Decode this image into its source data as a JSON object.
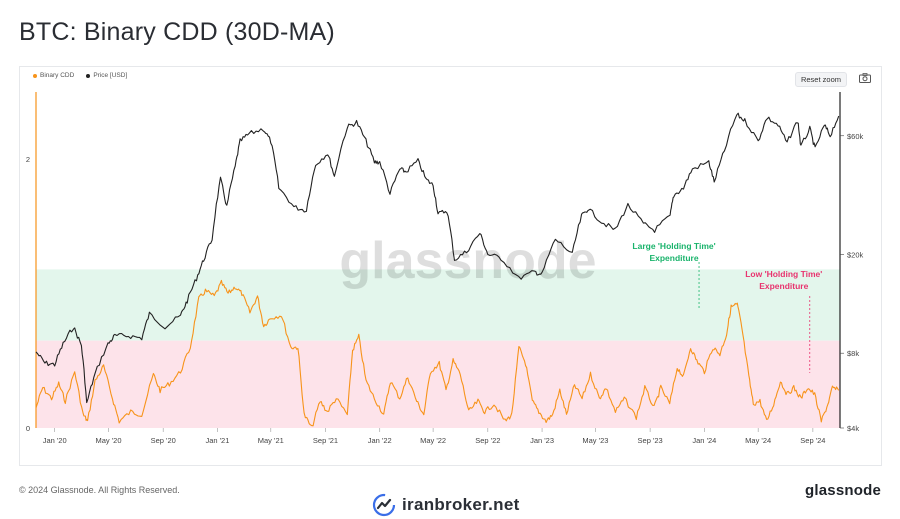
{
  "header": {
    "title": "BTC: Binary CDD (30D-MA)"
  },
  "toolbar": {
    "reset_zoom_label": "Reset zoom",
    "camera_icon": "camera-icon"
  },
  "footer": {
    "copyright": "© 2024 Glassnode. All Rights Reserved.",
    "brand": "glassnode",
    "watermark_site": "iranbroker.net"
  },
  "chart_data": {
    "type": "line",
    "title": "BTC: Binary CDD (30D-MA)",
    "watermark": "glassnode",
    "legend": {
      "placement": "top-left",
      "entries": [
        {
          "name": "Binary CDD",
          "color": "#f7931a"
        },
        {
          "name": "Price [USD]",
          "color": "#222222"
        }
      ]
    },
    "x_axis": {
      "type": "date",
      "range": [
        "2019-11-20",
        "2024-11-01"
      ],
      "tick_labels": [
        "Jan '20",
        "May '20",
        "Sep '20",
        "Jan '21",
        "May '21",
        "Sep '21",
        "Jan '22",
        "May '22",
        "Sep '22",
        "Jan '23",
        "May '23",
        "Sep '23",
        "Jan '24",
        "May '24",
        "Sep '24"
      ],
      "tick_dates": [
        "2020-01-01",
        "2020-05-01",
        "2020-09-01",
        "2021-01-01",
        "2021-05-01",
        "2021-09-01",
        "2022-01-01",
        "2022-05-01",
        "2022-09-01",
        "2023-01-01",
        "2023-05-01",
        "2023-09-01",
        "2024-01-01",
        "2024-05-01",
        "2024-09-01"
      ]
    },
    "y_left": {
      "label": "",
      "range": [
        0,
        2.5
      ],
      "tick_labels": [
        "0",
        "2"
      ],
      "tick_values": [
        0,
        2
      ]
    },
    "y_right": {
      "label": "",
      "scale": "log",
      "range": [
        4000,
        90000
      ],
      "tick_labels": [
        "$4k",
        "$8k",
        "$20k",
        "$60k"
      ],
      "tick_values": [
        4000,
        8000,
        20000,
        60000
      ]
    },
    "bands": [
      {
        "name": "green",
        "from": 0.65,
        "to": 1.18,
        "color": "#e3f6ec"
      },
      {
        "name": "pink",
        "from": 0,
        "to": 0.65,
        "color": "#fde3ea"
      }
    ],
    "annotations": [
      {
        "text_lines": [
          "Large 'Holding Time'",
          "Expenditure"
        ],
        "color": "#19b36b",
        "date": "2023-12-20",
        "y_cdd": 0.88
      },
      {
        "text_lines": [
          "Low 'Holding Time'",
          "Expenditure"
        ],
        "color": "#e8336e",
        "date": "2024-08-25",
        "y_cdd": 0.41
      }
    ],
    "series": [
      {
        "name": "Price [USD]",
        "axis": "right",
        "color": "#222222",
        "points": [
          [
            "2019-11-20",
            8100
          ],
          [
            "2019-12-10",
            7300
          ],
          [
            "2020-01-01",
            7200
          ],
          [
            "2020-01-20",
            8700
          ],
          [
            "2020-02-12",
            10200
          ],
          [
            "2020-03-01",
            8600
          ],
          [
            "2020-03-13",
            5000
          ],
          [
            "2020-04-01",
            6600
          ],
          [
            "2020-04-30",
            8700
          ],
          [
            "2020-05-15",
            9400
          ],
          [
            "2020-06-15",
            9400
          ],
          [
            "2020-07-15",
            9200
          ],
          [
            "2020-08-01",
            11500
          ],
          [
            "2020-09-05",
            10200
          ],
          [
            "2020-10-10",
            11300
          ],
          [
            "2020-10-25",
            13000
          ],
          [
            "2020-11-15",
            16000
          ],
          [
            "2020-12-01",
            19000
          ],
          [
            "2020-12-20",
            23000
          ],
          [
            "2021-01-08",
            40000
          ],
          [
            "2021-01-22",
            31000
          ],
          [
            "2021-02-10",
            45000
          ],
          [
            "2021-02-21",
            57000
          ],
          [
            "2021-03-13",
            61000
          ],
          [
            "2021-04-14",
            64000
          ],
          [
            "2021-05-01",
            57000
          ],
          [
            "2021-05-19",
            37000
          ],
          [
            "2021-06-22",
            31000
          ],
          [
            "2021-07-20",
            30000
          ],
          [
            "2021-08-10",
            46000
          ],
          [
            "2021-09-06",
            51000
          ],
          [
            "2021-09-21",
            41000
          ],
          [
            "2021-10-20",
            65000
          ],
          [
            "2021-11-10",
            68000
          ],
          [
            "2021-12-01",
            57000
          ],
          [
            "2021-12-20",
            47000
          ],
          [
            "2022-01-01",
            47000
          ],
          [
            "2022-01-24",
            35000
          ],
          [
            "2022-02-15",
            44000
          ],
          [
            "2022-03-01",
            43000
          ],
          [
            "2022-03-28",
            47500
          ],
          [
            "2022-04-15",
            40000
          ],
          [
            "2022-05-01",
            38000
          ],
          [
            "2022-05-12",
            29000
          ],
          [
            "2022-06-01",
            30000
          ],
          [
            "2022-06-18",
            19000
          ],
          [
            "2022-07-15",
            20500
          ],
          [
            "2022-08-14",
            24300
          ],
          [
            "2022-09-01",
            20000
          ],
          [
            "2022-10-01",
            19300
          ],
          [
            "2022-11-09",
            16000
          ],
          [
            "2022-12-15",
            17000
          ],
          [
            "2023-01-01",
            16600
          ],
          [
            "2023-01-31",
            23000
          ],
          [
            "2023-03-10",
            20000
          ],
          [
            "2023-03-31",
            28500
          ],
          [
            "2023-04-14",
            30500
          ],
          [
            "2023-05-15",
            27000
          ],
          [
            "2023-06-15",
            25000
          ],
          [
            "2023-07-13",
            31500
          ],
          [
            "2023-08-17",
            26500
          ],
          [
            "2023-09-11",
            25000
          ],
          [
            "2023-10-16",
            28500
          ],
          [
            "2023-10-24",
            34500
          ],
          [
            "2023-11-15",
            37000
          ],
          [
            "2023-12-05",
            44000
          ],
          [
            "2024-01-11",
            47000
          ],
          [
            "2024-01-23",
            39000
          ],
          [
            "2024-02-15",
            52000
          ],
          [
            "2024-03-14",
            73000
          ],
          [
            "2024-04-01",
            69000
          ],
          [
            "2024-05-01",
            57000
          ],
          [
            "2024-05-21",
            71000
          ],
          [
            "2024-06-15",
            66000
          ],
          [
            "2024-07-05",
            56000
          ],
          [
            "2024-07-29",
            69000
          ],
          [
            "2024-08-05",
            54000
          ],
          [
            "2024-08-25",
            64000
          ],
          [
            "2024-09-06",
            53000
          ],
          [
            "2024-09-27",
            66000
          ],
          [
            "2024-10-10",
            60000
          ],
          [
            "2024-10-29",
            72000
          ]
        ]
      },
      {
        "name": "Binary CDD",
        "axis": "left",
        "color": "#f7931a",
        "points": [
          [
            "2019-11-20",
            0.15
          ],
          [
            "2019-12-05",
            0.3
          ],
          [
            "2019-12-25",
            0.22
          ],
          [
            "2020-01-10",
            0.33
          ],
          [
            "2020-01-25",
            0.2
          ],
          [
            "2020-02-15",
            0.42
          ],
          [
            "2020-03-05",
            0.1
          ],
          [
            "2020-03-15",
            0.05
          ],
          [
            "2020-04-01",
            0.35
          ],
          [
            "2020-04-20",
            0.46
          ],
          [
            "2020-05-10",
            0.22
          ],
          [
            "2020-05-25",
            0.05
          ],
          [
            "2020-06-20",
            0.12
          ],
          [
            "2020-07-15",
            0.1
          ],
          [
            "2020-08-10",
            0.4
          ],
          [
            "2020-08-25",
            0.28
          ],
          [
            "2020-09-15",
            0.33
          ],
          [
            "2020-10-10",
            0.42
          ],
          [
            "2020-11-01",
            0.6
          ],
          [
            "2020-11-20",
            0.96
          ],
          [
            "2020-12-05",
            1.02
          ],
          [
            "2020-12-25",
            0.98
          ],
          [
            "2021-01-10",
            1.08
          ],
          [
            "2021-01-25",
            1.0
          ],
          [
            "2021-02-10",
            1.05
          ],
          [
            "2021-02-25",
            1.0
          ],
          [
            "2021-03-15",
            0.86
          ],
          [
            "2021-04-01",
            0.98
          ],
          [
            "2021-04-15",
            0.76
          ],
          [
            "2021-05-01",
            0.82
          ],
          [
            "2021-05-25",
            0.84
          ],
          [
            "2021-06-15",
            0.6
          ],
          [
            "2021-07-01",
            0.6
          ],
          [
            "2021-07-15",
            0.1
          ],
          [
            "2021-08-01",
            0.0
          ],
          [
            "2021-08-20",
            0.2
          ],
          [
            "2021-09-05",
            0.12
          ],
          [
            "2021-09-25",
            0.22
          ],
          [
            "2021-10-20",
            0.1
          ],
          [
            "2021-11-01",
            0.58
          ],
          [
            "2021-11-15",
            0.68
          ],
          [
            "2021-12-01",
            0.35
          ],
          [
            "2021-12-20",
            0.22
          ],
          [
            "2022-01-10",
            0.1
          ],
          [
            "2022-01-25",
            0.35
          ],
          [
            "2022-02-15",
            0.22
          ],
          [
            "2022-03-05",
            0.38
          ],
          [
            "2022-03-25",
            0.2
          ],
          [
            "2022-04-10",
            0.1
          ],
          [
            "2022-04-25",
            0.42
          ],
          [
            "2022-05-15",
            0.48
          ],
          [
            "2022-05-30",
            0.28
          ],
          [
            "2022-06-15",
            0.5
          ],
          [
            "2022-07-01",
            0.4
          ],
          [
            "2022-07-20",
            0.12
          ],
          [
            "2022-08-10",
            0.2
          ],
          [
            "2022-08-25",
            0.12
          ],
          [
            "2022-09-15",
            0.18
          ],
          [
            "2022-10-10",
            0.05
          ],
          [
            "2022-10-25",
            0.1
          ],
          [
            "2022-11-10",
            0.6
          ],
          [
            "2022-11-25",
            0.48
          ],
          [
            "2022-12-10",
            0.2
          ],
          [
            "2022-12-25",
            0.12
          ],
          [
            "2023-01-10",
            0.05
          ],
          [
            "2023-01-25",
            0.1
          ],
          [
            "2023-02-10",
            0.28
          ],
          [
            "2023-02-25",
            0.1
          ],
          [
            "2023-03-15",
            0.32
          ],
          [
            "2023-04-01",
            0.22
          ],
          [
            "2023-04-20",
            0.4
          ],
          [
            "2023-05-10",
            0.22
          ],
          [
            "2023-05-25",
            0.3
          ],
          [
            "2023-06-15",
            0.12
          ],
          [
            "2023-07-05",
            0.22
          ],
          [
            "2023-08-01",
            0.08
          ],
          [
            "2023-08-20",
            0.3
          ],
          [
            "2023-09-10",
            0.15
          ],
          [
            "2023-09-25",
            0.3
          ],
          [
            "2023-10-15",
            0.18
          ],
          [
            "2023-11-01",
            0.45
          ],
          [
            "2023-11-15",
            0.38
          ],
          [
            "2023-12-01",
            0.6
          ],
          [
            "2023-12-15",
            0.5
          ],
          [
            "2024-01-01",
            0.42
          ],
          [
            "2024-01-20",
            0.6
          ],
          [
            "2024-02-05",
            0.55
          ],
          [
            "2024-02-20",
            0.7
          ],
          [
            "2024-03-01",
            0.9
          ],
          [
            "2024-03-15",
            0.92
          ],
          [
            "2024-03-25",
            0.75
          ],
          [
            "2024-04-10",
            0.38
          ],
          [
            "2024-04-20",
            0.18
          ],
          [
            "2024-05-05",
            0.2
          ],
          [
            "2024-05-20",
            0.05
          ],
          [
            "2024-06-05",
            0.18
          ],
          [
            "2024-06-20",
            0.35
          ],
          [
            "2024-07-05",
            0.25
          ],
          [
            "2024-07-20",
            0.3
          ],
          [
            "2024-08-05",
            0.22
          ],
          [
            "2024-08-20",
            0.3
          ],
          [
            "2024-09-05",
            0.25
          ],
          [
            "2024-09-20",
            0.05
          ],
          [
            "2024-10-05",
            0.18
          ],
          [
            "2024-10-15",
            0.3
          ],
          [
            "2024-10-29",
            0.28
          ]
        ]
      }
    ]
  }
}
